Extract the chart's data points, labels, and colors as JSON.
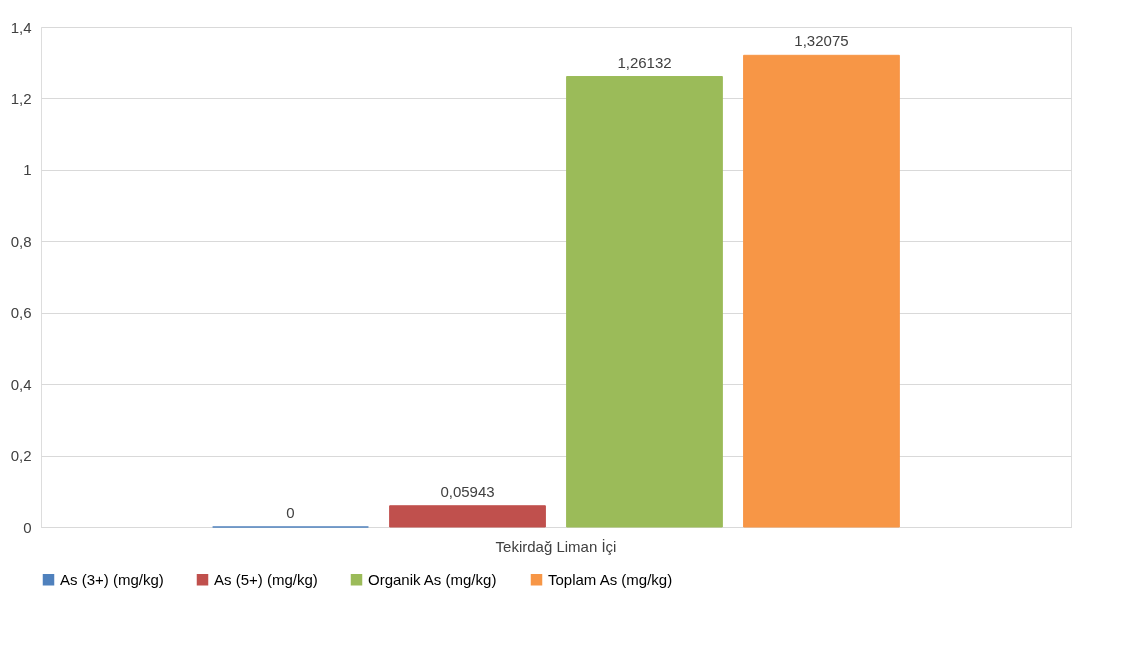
{
  "chart_data": {
    "type": "bar",
    "categories": [
      "Tekirdağ Liman İçi"
    ],
    "series": [
      {
        "name": "As (3+) (mg/kg)",
        "color": "#4f81bd",
        "values": [
          0
        ],
        "value_labels": [
          "0"
        ]
      },
      {
        "name": "As (5+) (mg/kg)",
        "color": "#c0504d",
        "values": [
          0.05943
        ],
        "value_labels": [
          "0,05943"
        ]
      },
      {
        "name": "Organik As (mg/kg)",
        "color": "#9bbb59",
        "values": [
          1.26132
        ],
        "value_labels": [
          "1,26132"
        ]
      },
      {
        "name": "Toplam As (mg/kg)",
        "color": "#f79646",
        "values": [
          1.32075
        ],
        "value_labels": [
          "1,32075"
        ]
      }
    ],
    "ylim": [
      0,
      1.4
    ],
    "yticks": [
      0,
      {
        "value": 0.2,
        "label": "0,2"
      },
      {
        "value": 0.4,
        "label": "0,4"
      },
      {
        "value": 0.6,
        "label": "0,6"
      },
      {
        "value": 0.8,
        "label": "0,8"
      },
      1,
      {
        "value": 1.2,
        "label": "1,2"
      },
      {
        "value": 1.4,
        "label": "1,4"
      }
    ],
    "grid": "y",
    "legend": "bottom"
  }
}
